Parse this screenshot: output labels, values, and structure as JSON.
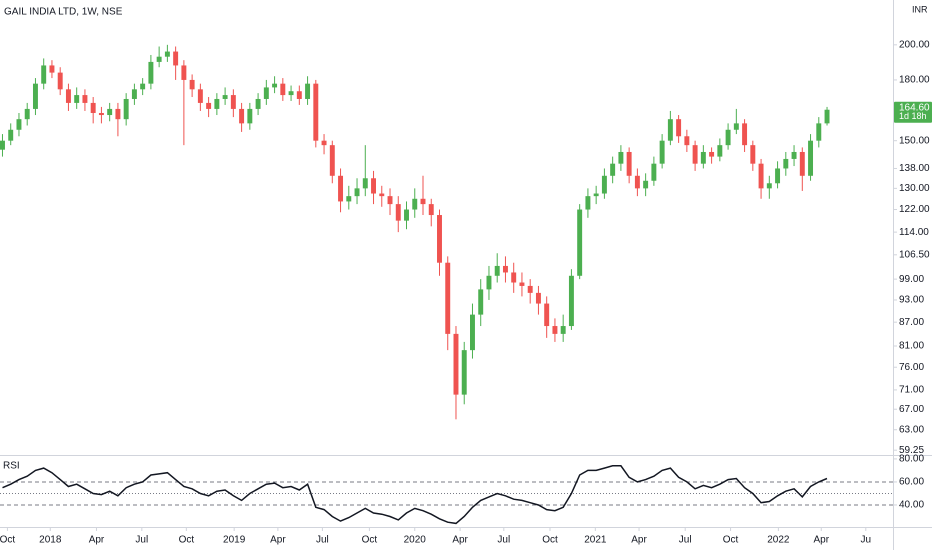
{
  "chart_data": {
    "type": "candlestick",
    "title": "GAIL INDIA LTD, 1W, NSE",
    "currency": "INR",
    "log_scale": true,
    "grid": false,
    "up_color": "#4caf50",
    "down_color": "#ef5350",
    "ylim": [
      58.4,
      228.8
    ],
    "yticks": [
      {
        "value": 59.25,
        "label": "59.25"
      },
      {
        "value": 63,
        "label": "63.00"
      },
      {
        "value": 67,
        "label": "67.00"
      },
      {
        "value": 71,
        "label": "71.00"
      },
      {
        "value": 76,
        "label": "76.00"
      },
      {
        "value": 81,
        "label": "81.00"
      },
      {
        "value": 87,
        "label": "87.00"
      },
      {
        "value": 93,
        "label": "93.00"
      },
      {
        "value": 99,
        "label": "99.00"
      },
      {
        "value": 106.5,
        "label": "106.50"
      },
      {
        "value": 114,
        "label": "114.00"
      },
      {
        "value": 122,
        "label": "122.00"
      },
      {
        "value": 130,
        "label": "130.00"
      },
      {
        "value": 138,
        "label": "138.00"
      },
      {
        "value": 150,
        "label": "150.00"
      },
      {
        "value": 180,
        "label": "180.00"
      },
      {
        "value": 200,
        "label": "200.00"
      }
    ],
    "xlim": [
      -0.3,
      108
    ],
    "xticks": [
      {
        "value": 0.6,
        "label": "Oct"
      },
      {
        "value": 5.8,
        "label": "2018"
      },
      {
        "value": 11.4,
        "label": "Apr"
      },
      {
        "value": 16.9,
        "label": "Jul"
      },
      {
        "value": 22.3,
        "label": "Oct"
      },
      {
        "value": 28.1,
        "label": "2019"
      },
      {
        "value": 33.4,
        "label": "Apr"
      },
      {
        "value": 38.8,
        "label": "Jul"
      },
      {
        "value": 44.5,
        "label": "Oct"
      },
      {
        "value": 50,
        "label": "2020"
      },
      {
        "value": 55.5,
        "label": "Apr"
      },
      {
        "value": 60.8,
        "label": "Jul"
      },
      {
        "value": 66.4,
        "label": "Oct"
      },
      {
        "value": 71.9,
        "label": "2021"
      },
      {
        "value": 77.2,
        "label": "Apr"
      },
      {
        "value": 82.8,
        "label": "Jul"
      },
      {
        "value": 88.3,
        "label": "Oct"
      },
      {
        "value": 94.1,
        "label": "2022"
      },
      {
        "value": 99.3,
        "label": "Apr"
      },
      {
        "value": 104.7,
        "label": "Ju"
      }
    ],
    "open": [
      146,
      150,
      155,
      160,
      165,
      178,
      188,
      184,
      175,
      168,
      172,
      168,
      163,
      162,
      165,
      160,
      170,
      175,
      178,
      190,
      193,
      196,
      188,
      180,
      175,
      168,
      165,
      170,
      172,
      165,
      158,
      165,
      170,
      176,
      178,
      172,
      174,
      170,
      178,
      150,
      148,
      135,
      125,
      127,
      130,
      134,
      128,
      127,
      124,
      118,
      122,
      126,
      124,
      120,
      104,
      84,
      70,
      80,
      89,
      96,
      100,
      103,
      101,
      98,
      97,
      95,
      92,
      86,
      84,
      86,
      100,
      122,
      127,
      128,
      135,
      140,
      145,
      135,
      130,
      133,
      140,
      150,
      160,
      152,
      148,
      140,
      145,
      143,
      148,
      155,
      158,
      148,
      140,
      130,
      132,
      138,
      142,
      145,
      135,
      150,
      158
    ],
    "high": [
      153,
      158,
      163,
      168,
      181,
      192,
      191,
      187,
      178,
      176,
      175,
      171,
      166,
      168,
      168,
      173,
      178,
      181,
      194,
      199,
      200,
      199,
      191,
      183,
      178,
      171,
      173,
      176,
      175,
      168,
      168,
      173,
      180,
      182,
      181,
      177,
      177,
      182,
      180,
      153,
      150,
      138,
      131,
      134,
      148,
      137,
      131,
      130,
      127,
      125,
      130,
      135,
      126,
      122,
      106,
      86,
      82,
      92,
      99,
      103,
      107,
      106,
      104,
      101,
      99,
      97,
      94,
      88,
      89,
      102,
      124,
      130,
      131,
      138,
      143,
      148,
      147,
      138,
      136,
      143,
      153,
      164,
      162,
      155,
      150,
      148,
      147,
      151,
      158,
      165,
      160,
      150,
      142,
      135,
      141,
      145,
      148,
      147,
      153,
      161,
      166
    ],
    "low": [
      143,
      148,
      152,
      157,
      162,
      175,
      181,
      172,
      164,
      165,
      164,
      158,
      158,
      159,
      152,
      157,
      167,
      172,
      175,
      187,
      190,
      180,
      148,
      171,
      164,
      161,
      162,
      167,
      161,
      154,
      155,
      162,
      167,
      173,
      169,
      169,
      167,
      167,
      147,
      144,
      132,
      121,
      122,
      124,
      127,
      124,
      123,
      120,
      114,
      115,
      119,
      120,
      116,
      100,
      80,
      65,
      68,
      78,
      86,
      93,
      98,
      98,
      95,
      94,
      92,
      89,
      83,
      82,
      82,
      85,
      99,
      119,
      124,
      126,
      132,
      137,
      132,
      127,
      127,
      131,
      138,
      148,
      149,
      145,
      137,
      138,
      140,
      141,
      146,
      153,
      145,
      137,
      126,
      126,
      130,
      135,
      139,
      129,
      133,
      147,
      157
    ],
    "close": [
      150,
      155,
      160,
      165,
      178,
      188,
      184,
      175,
      168,
      172,
      168,
      163,
      162,
      165,
      160,
      170,
      175,
      178,
      190,
      193,
      196,
      188,
      180,
      175,
      168,
      165,
      170,
      172,
      165,
      158,
      165,
      170,
      176,
      178,
      172,
      174,
      170,
      178,
      150,
      148,
      135,
      125,
      127,
      130,
      134,
      128,
      127,
      124,
      118,
      122,
      126,
      124,
      120,
      104,
      84,
      70,
      80,
      89,
      96,
      100,
      103,
      101,
      98,
      97,
      95,
      92,
      86,
      84,
      86,
      100,
      122,
      127,
      128,
      135,
      140,
      145,
      135,
      130,
      133,
      140,
      150,
      160,
      152,
      148,
      140,
      145,
      143,
      148,
      155,
      158,
      148,
      140,
      130,
      132,
      138,
      142,
      145,
      135,
      150,
      158,
      164.6
    ],
    "last_price": {
      "value": 164.6,
      "label": "164.60"
    },
    "countdown": "1d 18h",
    "rsi": {
      "name": "RSI",
      "color": "#131722",
      "ylim": [
        22.6,
        83.4
      ],
      "yticks": [
        {
          "value": 80,
          "label": "80.00"
        },
        {
          "value": 60,
          "label": "60.00"
        },
        {
          "value": 40,
          "label": "40.00"
        }
      ],
      "levels": [
        60,
        50,
        40
      ],
      "values": [
        55,
        58,
        62,
        65,
        70,
        72,
        68,
        62,
        56,
        58,
        54,
        50,
        49,
        52,
        48,
        55,
        58,
        60,
        66,
        67,
        68,
        62,
        56,
        54,
        50,
        48,
        52,
        53,
        48,
        44,
        50,
        54,
        58,
        59,
        55,
        56,
        53,
        58,
        38,
        36,
        30,
        26,
        29,
        33,
        37,
        33,
        32,
        30,
        27,
        33,
        37,
        35,
        32,
        28,
        25,
        24,
        30,
        38,
        44,
        47,
        50,
        48,
        45,
        44,
        42,
        40,
        36,
        35,
        38,
        50,
        66,
        70,
        70,
        72,
        74,
        74,
        64,
        60,
        62,
        65,
        70,
        72,
        64,
        60,
        54,
        57,
        55,
        58,
        62,
        63,
        55,
        50,
        42,
        43,
        48,
        52,
        54,
        47,
        56,
        60,
        63
      ]
    }
  }
}
